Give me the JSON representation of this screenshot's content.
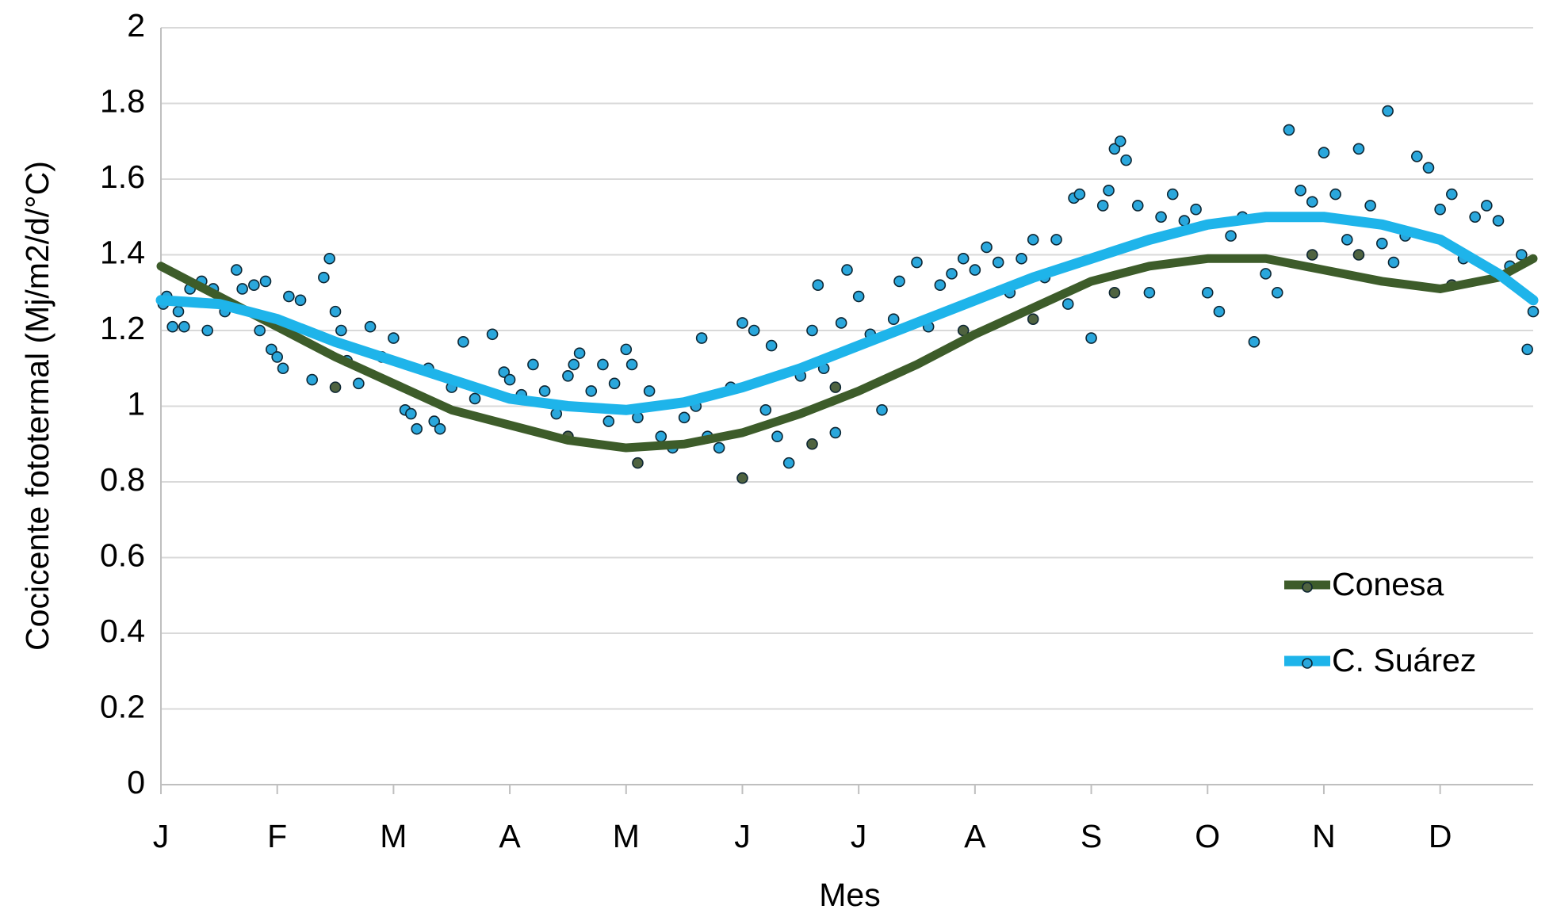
{
  "chart_data": {
    "type": "scatter",
    "x_label": "Mes",
    "y_label": "Cocicente fototermal (Mj/m2/d/°C)",
    "xlim": [
      0,
      11.8
    ],
    "xticks": [
      {
        "value": 0,
        "label": "J"
      },
      {
        "value": 1,
        "label": "F"
      },
      {
        "value": 2,
        "label": "M"
      },
      {
        "value": 3,
        "label": "A"
      },
      {
        "value": 4,
        "label": "M"
      },
      {
        "value": 5,
        "label": "J"
      },
      {
        "value": 6,
        "label": "J"
      },
      {
        "value": 7,
        "label": "A"
      },
      {
        "value": 8,
        "label": "S"
      },
      {
        "value": 9,
        "label": "O"
      },
      {
        "value": 10,
        "label": "N"
      },
      {
        "value": 11,
        "label": "D"
      }
    ],
    "ylim": [
      0,
      2
    ],
    "yticks": [
      0,
      0.2,
      0.4,
      0.6,
      0.8,
      1,
      1.2,
      1.4,
      1.6,
      1.8,
      2
    ],
    "grid": true,
    "legend": "lower right",
    "trend_x": [
      0,
      0.5,
      1,
      1.5,
      2,
      2.5,
      3,
      3.5,
      4,
      4.5,
      5,
      5.5,
      6,
      6.5,
      7,
      7.5,
      8,
      8.5,
      9,
      9.5,
      10,
      10.5,
      11,
      11.5,
      11.8
    ],
    "series": [
      {
        "name": "Conesa",
        "color": "#3d5c2a",
        "point_color": "#4f6340",
        "x": [
          1.5,
          3.5,
          4.1,
          5.0,
          5.6,
          5.8,
          6.9,
          7.5,
          8.2,
          9.9,
          10.3,
          11.1
        ],
        "values": [
          1.05,
          0.92,
          0.85,
          0.81,
          0.9,
          1.05,
          1.2,
          1.23,
          1.3,
          1.4,
          1.4,
          1.32
        ],
        "trend": [
          1.37,
          1.29,
          1.21,
          1.13,
          1.06,
          0.99,
          0.95,
          0.91,
          0.89,
          0.9,
          0.93,
          0.98,
          1.04,
          1.11,
          1.19,
          1.26,
          1.33,
          1.37,
          1.39,
          1.39,
          1.36,
          1.33,
          1.31,
          1.34,
          1.39
        ]
      },
      {
        "name": "C. Suárez",
        "color": "#1eb4ea",
        "point_color": "#2aa7dc",
        "x": [
          0.02,
          0.05,
          0.1,
          0.15,
          0.2,
          0.25,
          0.35,
          0.4,
          0.45,
          0.55,
          0.65,
          0.7,
          0.8,
          0.85,
          0.9,
          0.95,
          1.0,
          1.05,
          1.1,
          1.2,
          1.3,
          1.4,
          1.45,
          1.5,
          1.55,
          1.6,
          1.7,
          1.8,
          1.9,
          2.0,
          2.1,
          2.15,
          2.2,
          2.3,
          2.35,
          2.4,
          2.5,
          2.6,
          2.7,
          2.85,
          2.95,
          3.0,
          3.1,
          3.2,
          3.3,
          3.4,
          3.5,
          3.55,
          3.6,
          3.7,
          3.8,
          3.85,
          3.9,
          4.0,
          4.05,
          4.1,
          4.2,
          4.3,
          4.4,
          4.5,
          4.6,
          4.65,
          4.7,
          4.8,
          4.9,
          5.0,
          5.1,
          5.2,
          5.25,
          5.3,
          5.4,
          5.5,
          5.6,
          5.65,
          5.7,
          5.8,
          5.85,
          5.9,
          6.0,
          6.1,
          6.2,
          6.3,
          6.35,
          6.5,
          6.6,
          6.7,
          6.8,
          6.9,
          7.0,
          7.1,
          7.2,
          7.3,
          7.4,
          7.5,
          7.6,
          7.7,
          7.8,
          7.85,
          7.9,
          8.0,
          8.1,
          8.15,
          8.2,
          8.25,
          8.3,
          8.4,
          8.5,
          8.6,
          8.7,
          8.8,
          8.9,
          9.0,
          9.1,
          9.2,
          9.3,
          9.4,
          9.5,
          9.6,
          9.7,
          9.8,
          9.9,
          10.0,
          10.1,
          10.2,
          10.3,
          10.4,
          10.5,
          10.55,
          10.6,
          10.7,
          10.8,
          10.9,
          11.0,
          11.1,
          11.2,
          11.3,
          11.4,
          11.5,
          11.6,
          11.7,
          11.75,
          11.8
        ],
        "values": [
          1.27,
          1.29,
          1.21,
          1.25,
          1.21,
          1.31,
          1.33,
          1.2,
          1.31,
          1.25,
          1.36,
          1.31,
          1.32,
          1.2,
          1.33,
          1.15,
          1.13,
          1.1,
          1.29,
          1.28,
          1.07,
          1.34,
          1.39,
          1.25,
          1.2,
          1.12,
          1.06,
          1.21,
          1.13,
          1.18,
          0.99,
          0.98,
          0.94,
          1.1,
          0.96,
          0.94,
          1.05,
          1.17,
          1.02,
          1.19,
          1.09,
          1.07,
          1.03,
          1.11,
          1.04,
          0.98,
          1.08,
          1.11,
          1.14,
          1.04,
          1.11,
          0.96,
          1.06,
          1.15,
          1.11,
          0.97,
          1.04,
          0.92,
          0.89,
          0.97,
          1.0,
          1.18,
          0.92,
          0.89,
          1.05,
          1.22,
          1.2,
          0.99,
          1.16,
          0.92,
          0.85,
          1.08,
          1.2,
          1.32,
          1.1,
          0.93,
          1.22,
          1.36,
          1.29,
          1.19,
          0.99,
          1.23,
          1.33,
          1.38,
          1.21,
          1.32,
          1.35,
          1.39,
          1.36,
          1.42,
          1.38,
          1.3,
          1.39,
          1.44,
          1.34,
          1.44,
          1.27,
          1.55,
          1.56,
          1.18,
          1.53,
          1.57,
          1.68,
          1.7,
          1.65,
          1.53,
          1.3,
          1.5,
          1.56,
          1.49,
          1.52,
          1.3,
          1.25,
          1.45,
          1.5,
          1.17,
          1.35,
          1.3,
          1.73,
          1.57,
          1.54,
          1.67,
          1.56,
          1.44,
          1.68,
          1.53,
          1.43,
          1.78,
          1.38,
          1.45,
          1.66,
          1.63,
          1.52,
          1.56,
          1.39,
          1.5,
          1.53,
          1.49,
          1.37,
          1.4,
          1.15,
          1.25
        ],
        "trend": [
          1.28,
          1.27,
          1.23,
          1.17,
          1.12,
          1.07,
          1.02,
          1.0,
          0.99,
          1.01,
          1.05,
          1.1,
          1.16,
          1.22,
          1.28,
          1.34,
          1.39,
          1.44,
          1.48,
          1.5,
          1.5,
          1.48,
          1.44,
          1.35,
          1.28
        ]
      }
    ]
  }
}
